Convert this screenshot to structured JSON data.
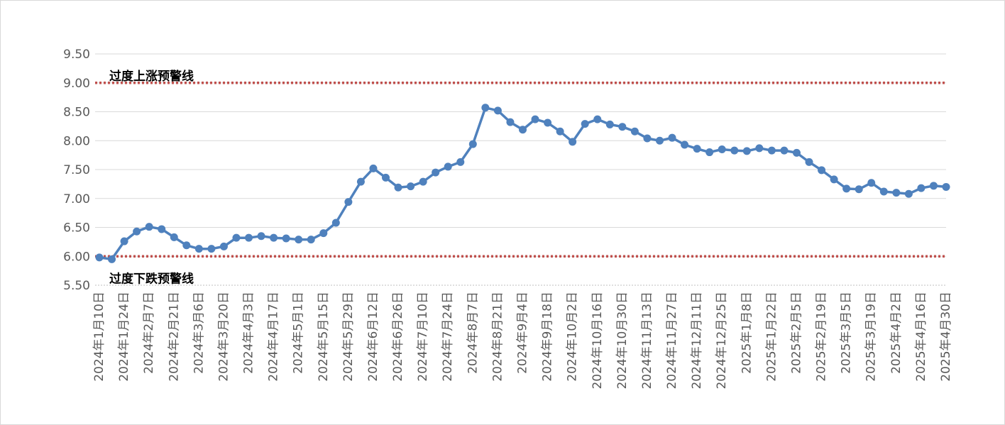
{
  "chart_data": {
    "type": "line",
    "title": "",
    "xlabel": "",
    "ylabel": "",
    "ylim": [
      5.5,
      9.5
    ],
    "y_ticks": [
      "5.50",
      "6.00",
      "6.50",
      "7.00",
      "7.50",
      "8.00",
      "8.50",
      "9.00",
      "9.50"
    ],
    "grid": true,
    "line_color": "#4f81bd",
    "reference_line_color": "#c0504d",
    "reference_lines": [
      {
        "value": 9.0,
        "label": "过度上涨预警线"
      },
      {
        "value": 6.0,
        "label": "过度下跌预警线"
      }
    ],
    "x_tick_labels": [
      "2024年1月10日",
      "2024年1月24日",
      "2024年2月7日",
      "2024年2月21日",
      "2024年3月6日",
      "2024年3月20日",
      "2024年4月3日",
      "2024年4月17日",
      "2024年5月1日",
      "2024年5月15日",
      "2024年5月29日",
      "2024年6月12日",
      "2024年6月26日",
      "2024年7月10日",
      "2024年7月24日",
      "2024年8月7日",
      "2024年8月21日",
      "2024年9月4日",
      "2024年9月18日",
      "2024年10月2日",
      "2024年10月16日",
      "2024年10月30日",
      "2024年11月13日",
      "2024年11月27日",
      "2024年12月11日",
      "2024年12月25日",
      "2025年1月8日",
      "2025年1月22日",
      "2025年2月5日",
      "2025年2月19日",
      "2025年3月5日",
      "2025年3月19日",
      "2025年4月2日",
      "2025年4月16日",
      "2025年4月30日"
    ],
    "series": [
      {
        "values": [
          5.98,
          5.95,
          6.26,
          6.43,
          6.51,
          6.47,
          6.33,
          6.19,
          6.13,
          6.13,
          6.17,
          6.32,
          6.32,
          6.35,
          6.32,
          6.31,
          6.29,
          6.29,
          6.4,
          6.58,
          6.94,
          7.29,
          7.52,
          7.36,
          7.19,
          7.21,
          7.29,
          7.45,
          7.55,
          7.63,
          7.94,
          8.57,
          8.52,
          8.32,
          8.19,
          8.37,
          8.31,
          8.16,
          7.98,
          8.29,
          8.37,
          8.28,
          8.24,
          8.16,
          8.04,
          8.0,
          8.05,
          7.93,
          7.86,
          7.8,
          7.85,
          7.83,
          7.82,
          7.87,
          7.83,
          7.83,
          7.79,
          7.63,
          7.49,
          7.33,
          7.17,
          7.16,
          7.27,
          7.12,
          7.1,
          7.08,
          7.18,
          7.22,
          7.2
        ]
      }
    ]
  }
}
